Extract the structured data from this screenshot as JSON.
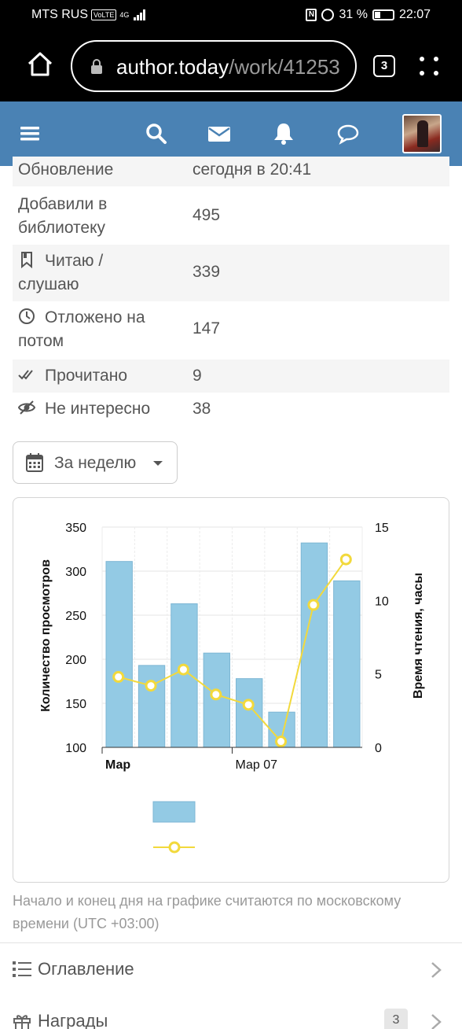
{
  "status_bar": {
    "carrier": "MTS RUS",
    "volte": "VoLTE",
    "network": "4G",
    "battery": "31 %",
    "time": "22:07"
  },
  "browser": {
    "url_host": "author.today",
    "url_path": "/work/41253",
    "tab_count": "3"
  },
  "stats": [
    {
      "icon": "",
      "label": "Обновление",
      "value": "сегодня в 20:41"
    },
    {
      "icon": "",
      "label": "Добавили в библиотеку",
      "value": "495"
    },
    {
      "icon": "bookmark-icon",
      "label": "Читаю / слушаю",
      "value": "339"
    },
    {
      "icon": "clock-icon",
      "label": "Отложено на потом",
      "value": "147"
    },
    {
      "icon": "double-check-icon",
      "label": "Прочитано",
      "value": "9"
    },
    {
      "icon": "eye-slash-icon",
      "label": "Не интересно",
      "value": "38"
    }
  ],
  "period": {
    "label": "За неделю"
  },
  "chart_data": {
    "type": "bar",
    "ylabel": "Количество просмотров",
    "y2label": "Время чтения, часы",
    "ylim": [
      100,
      350
    ],
    "y_ticks": [
      "100",
      "150",
      "200",
      "250",
      "300",
      "350"
    ],
    "y2lim": [
      0,
      15
    ],
    "y2_ticks": [
      "0",
      "5",
      "10",
      "15"
    ],
    "x_labels": [
      "Мар",
      "Мар 07"
    ],
    "series": [
      {
        "type": "bar",
        "color": "#93cae4",
        "values": [
          311,
          193,
          263,
          207,
          178,
          140,
          332,
          289
        ]
      },
      {
        "type": "line",
        "color": "#f2d93c",
        "values": [
          4.8,
          4.2,
          5.3,
          3.6,
          2.9,
          0.4,
          9.7,
          12.8
        ]
      }
    ],
    "grid": true,
    "legend": "bottom"
  },
  "note": "Начало и конец дня на графике считаются по московскому времени (UTC +03:00)",
  "nav": [
    {
      "icon": "list-icon",
      "label": "Оглавление",
      "badge": ""
    },
    {
      "icon": "gift-icon",
      "label": "Награды",
      "badge": "3"
    }
  ]
}
